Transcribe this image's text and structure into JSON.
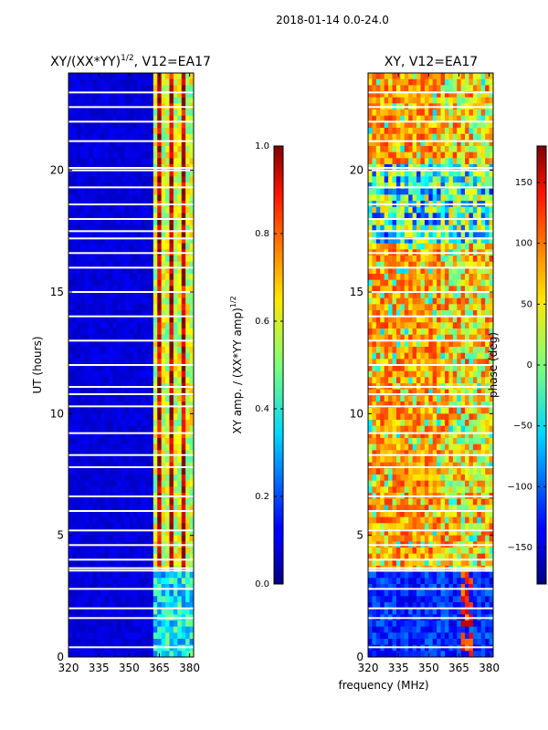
{
  "figure": {
    "suptitle": "2018-01-14 0.0-24.0",
    "xlabel": "frequency (MHz)"
  },
  "chart_data": [
    {
      "type": "heatmap",
      "title_main": "XY/(XX*YY)",
      "title_exp": "1/2",
      "title_tail": ", V12=EA17",
      "ylabel": "UT (hours)",
      "xlabel": "frequency (MHz)",
      "xlim": [
        320,
        382
      ],
      "ylim": [
        0,
        24
      ],
      "xticks": [
        320,
        335,
        350,
        365,
        380
      ],
      "yticks": [
        0,
        5,
        10,
        15,
        20
      ],
      "colorbar": {
        "label_main": "XY amp. / (XX*YY amp)",
        "label_exp": "1/2",
        "range": [
          0.0,
          1.0
        ],
        "ticks": [
          "0.0",
          "0.2",
          "0.4",
          "0.6",
          "0.8",
          "1.0"
        ],
        "tick_values": [
          0.0,
          0.2,
          0.4,
          0.6,
          0.8,
          1.0
        ]
      },
      "notes": "Mostly low normalized amplitude (~0.05) below 362 MHz; 362-382 MHz shows bright channel comb (0.4-1.0) after 3.5 UT, with data-flagged white gaps."
    },
    {
      "type": "heatmap",
      "title": "XY, V12=EA17",
      "xlabel": "frequency (MHz)",
      "xlim": [
        320,
        382
      ],
      "ylim": [
        0,
        24
      ],
      "xticks": [
        320,
        335,
        350,
        365,
        380
      ],
      "yticks": [
        0,
        5,
        10,
        15,
        20
      ],
      "colorbar": {
        "label": "phase (deg)",
        "range": [
          -180,
          180
        ],
        "ticks": [
          "−150",
          "−100",
          "−50",
          "0",
          "50",
          "100",
          "150"
        ],
        "tick_values": [
          -150,
          -100,
          -50,
          0,
          50,
          100,
          150
        ]
      },
      "notes": "Phase near -150 to -100 deg before 3.3 UT; mostly 50-120 deg afterwards with noisy stripes and white flagged rows."
    }
  ]
}
